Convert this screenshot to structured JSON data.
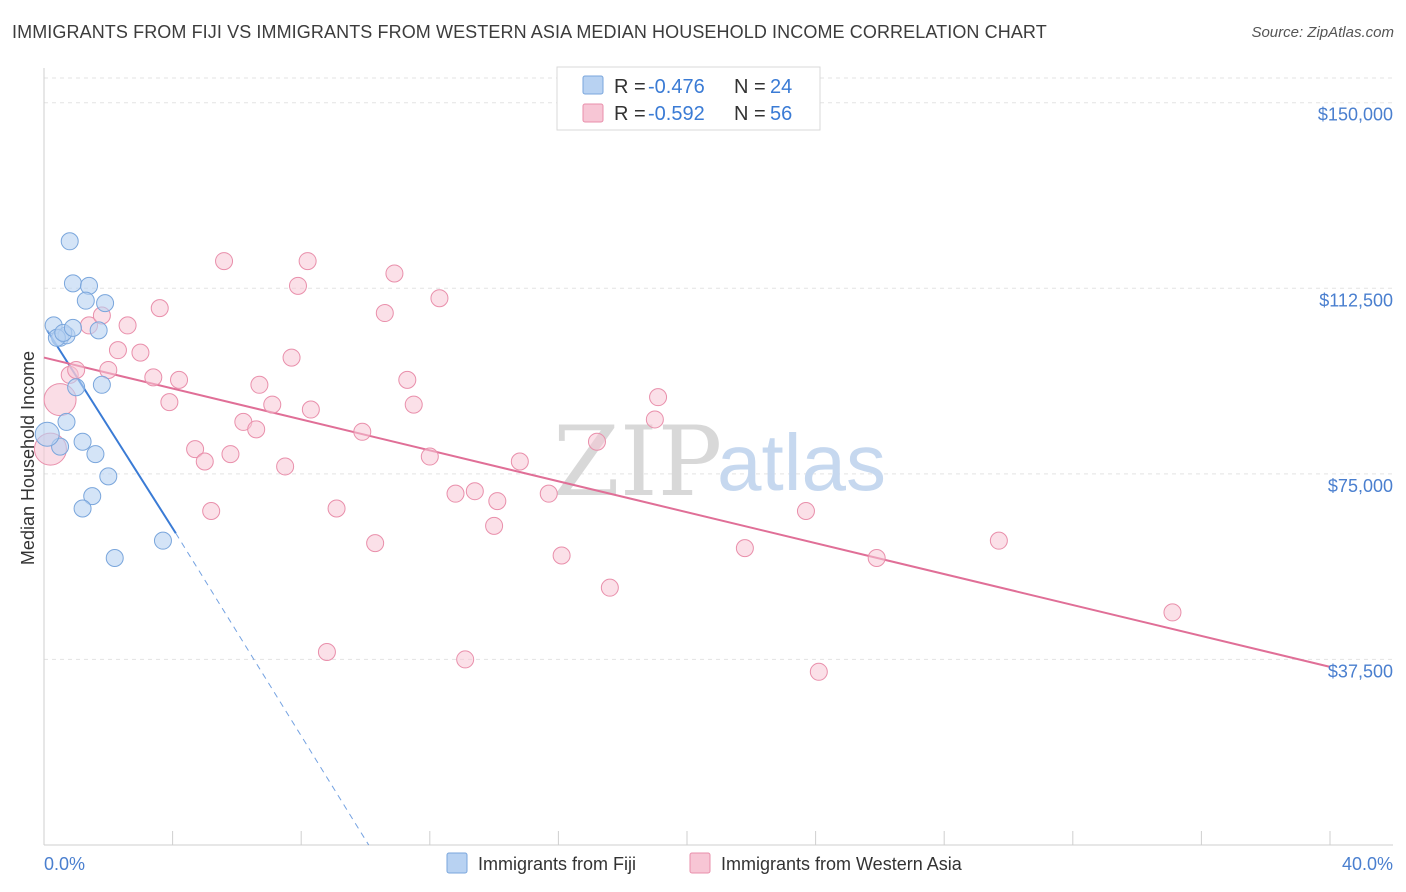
{
  "header": {
    "title": "IMMIGRANTS FROM FIJI VS IMMIGRANTS FROM WESTERN ASIA MEDIAN HOUSEHOLD INCOME CORRELATION CHART",
    "source": "Source: ZipAtlas.com"
  },
  "watermark": {
    "zip": "ZIP",
    "atlas": "atlas"
  },
  "colors": {
    "fiji_fill": "#b8d2f2",
    "fiji_stroke": "#7aa6dc",
    "fiji_line": "#3a7bd5",
    "wa_fill": "#f7c6d5",
    "wa_stroke": "#e98fab",
    "wa_line": "#e06f97",
    "grid": "#e3e3e3",
    "tick_label": "#4a7fcf"
  },
  "legend_box": {
    "rows": [
      {
        "r_label": "R =",
        "r_value": "-0.476",
        "n_label": "N =",
        "n_value": "24"
      },
      {
        "r_label": "R =",
        "r_value": "-0.592",
        "n_label": "N =",
        "n_value": "56"
      }
    ]
  },
  "chart_data": {
    "type": "scatter",
    "title": "IMMIGRANTS FROM FIJI VS IMMIGRANTS FROM WESTERN ASIA MEDIAN HOUSEHOLD INCOME CORRELATION CHART",
    "xlabel": "",
    "ylabel": "Median Household Income",
    "xlim": [
      0.0,
      40.0
    ],
    "ylim": [
      0,
      155000
    ],
    "x_tick_labels": [
      "0.0%",
      "40.0%"
    ],
    "y_ticks": [
      37500,
      75000,
      112500,
      150000
    ],
    "y_tick_labels": [
      "$37,500",
      "$75,000",
      "$112,500",
      "$150,000"
    ],
    "grid": true,
    "legend_position": "bottom-center",
    "series": [
      {
        "name": "Immigrants from Fiji",
        "r": -0.476,
        "n": 24,
        "points": [
          [
            0.3,
            105000
          ],
          [
            0.5,
            102500
          ],
          [
            0.7,
            103000
          ],
          [
            0.4,
            102500
          ],
          [
            0.6,
            103500
          ],
          [
            0.9,
            104500
          ],
          [
            1.7,
            104000
          ],
          [
            0.8,
            122000
          ],
          [
            0.9,
            113500
          ],
          [
            1.4,
            113000
          ],
          [
            1.3,
            110000
          ],
          [
            1.9,
            109500
          ],
          [
            1.0,
            92500
          ],
          [
            1.8,
            93000
          ],
          [
            0.7,
            85500
          ],
          [
            1.2,
            81500
          ],
          [
            0.5,
            80500
          ],
          [
            1.6,
            79000
          ],
          [
            2.0,
            74500
          ],
          [
            1.5,
            70500
          ],
          [
            1.2,
            68000
          ],
          [
            2.2,
            58000
          ],
          [
            3.7,
            61500
          ],
          [
            0.1,
            83000
          ]
        ],
        "trend": {
          "x": [
            0.1,
            4.1
          ],
          "y": [
            104000,
            63000
          ],
          "dashed_to": {
            "x": 10.1,
            "y": 0
          }
        }
      },
      {
        "name": "Immigrants from Western Asia",
        "r": -0.592,
        "n": 56,
        "points": [
          [
            0.2,
            80000
          ],
          [
            0.5,
            90000
          ],
          [
            0.8,
            95000
          ],
          [
            1.0,
            96000
          ],
          [
            1.4,
            105000
          ],
          [
            1.8,
            107000
          ],
          [
            2.0,
            96000
          ],
          [
            2.3,
            100000
          ],
          [
            2.6,
            105000
          ],
          [
            3.0,
            99500
          ],
          [
            3.4,
            94500
          ],
          [
            3.6,
            108500
          ],
          [
            3.9,
            89500
          ],
          [
            4.2,
            94000
          ],
          [
            4.7,
            80000
          ],
          [
            5.0,
            77500
          ],
          [
            5.2,
            67500
          ],
          [
            5.6,
            118000
          ],
          [
            5.8,
            79000
          ],
          [
            6.2,
            85500
          ],
          [
            6.6,
            84000
          ],
          [
            6.7,
            93000
          ],
          [
            7.1,
            89000
          ],
          [
            7.5,
            76500
          ],
          [
            7.7,
            98500
          ],
          [
            7.9,
            113000
          ],
          [
            8.2,
            118000
          ],
          [
            8.3,
            88000
          ],
          [
            8.8,
            39000
          ],
          [
            9.1,
            68000
          ],
          [
            9.9,
            83500
          ],
          [
            10.3,
            61000
          ],
          [
            10.6,
            107500
          ],
          [
            10.9,
            115500
          ],
          [
            11.3,
            94000
          ],
          [
            11.5,
            89000
          ],
          [
            12.0,
            78500
          ],
          [
            12.3,
            110500
          ],
          [
            12.8,
            71000
          ],
          [
            13.1,
            37500
          ],
          [
            13.4,
            71500
          ],
          [
            14.0,
            64500
          ],
          [
            14.1,
            69500
          ],
          [
            14.8,
            77500
          ],
          [
            15.7,
            71000
          ],
          [
            16.1,
            58500
          ],
          [
            17.2,
            81500
          ],
          [
            17.6,
            52000
          ],
          [
            19.0,
            86000
          ],
          [
            19.1,
            90500
          ],
          [
            21.8,
            60000
          ],
          [
            23.7,
            67500
          ],
          [
            24.1,
            35000
          ],
          [
            25.9,
            58000
          ],
          [
            29.7,
            61500
          ],
          [
            35.1,
            47000
          ]
        ],
        "trend": {
          "x": [
            0.0,
            40.0
          ],
          "y": [
            98500,
            36000
          ]
        }
      }
    ]
  }
}
